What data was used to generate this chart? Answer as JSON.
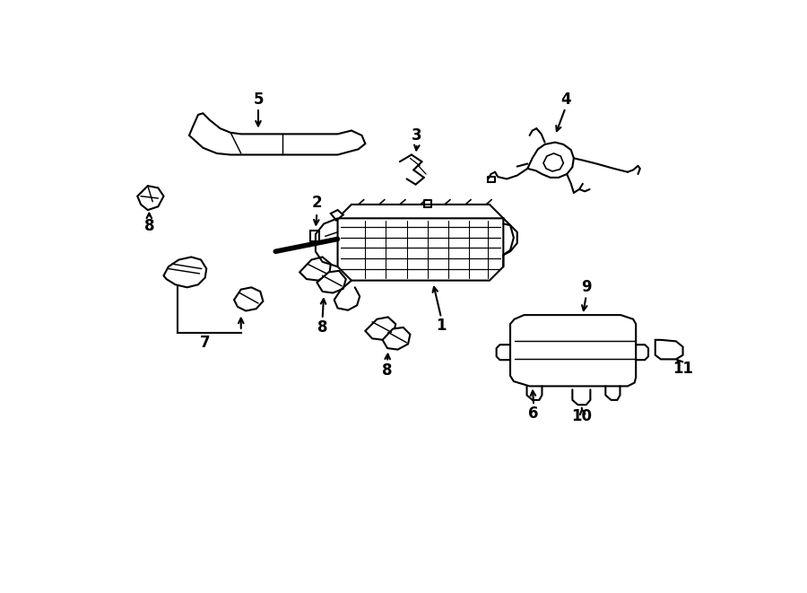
{
  "background_color": "#ffffff",
  "line_color": "#000000",
  "lw": 1.5,
  "fig_width": 9.0,
  "fig_height": 6.61,
  "dpi": 100
}
